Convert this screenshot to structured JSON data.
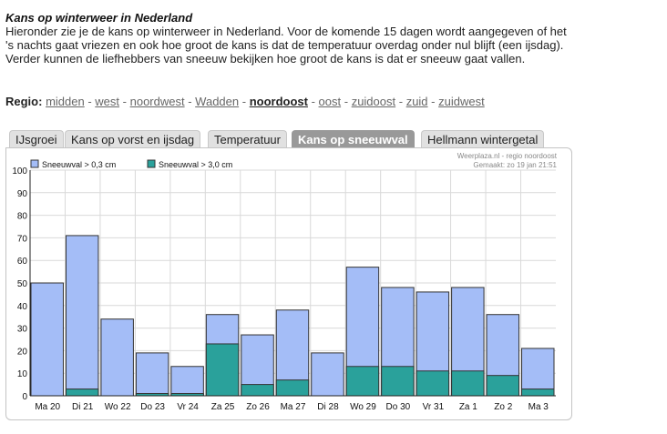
{
  "header": {
    "title": "Kans op winterweer in Nederland",
    "intro": "Hieronder zie je de kans op winterweer in Nederland. Voor de komende 15 dagen wordt aangegeven of het 's nachts gaat vriezen en ook hoe groot de kans is dat de temperatuur overdag onder nul blijft (een ijsdag). Verder kunnen de liefhebbers van sneeuw bekijken hoe groot de kans is dat er sneeuw gaat vallen."
  },
  "regio": {
    "label": "Regio:",
    "links": [
      "midden",
      "west",
      "noordwest",
      "Wadden",
      "noordoost",
      "oost",
      "zuidoost",
      "zuid",
      "zuidwest"
    ],
    "active": "noordoost"
  },
  "tabs": [
    "IJsgroei",
    "Kans op vorst en ijsdag",
    "Temperatuur",
    "Kans op sneeuwval",
    "Hellmann wintergetal"
  ],
  "active_tab": "Kans op sneeuwval",
  "credit": {
    "line1": "Weerplaza.nl - regio noordoost",
    "line2": "Gemaakt: zo 19 jan 21:51"
  },
  "colors": {
    "light": "#a4bdf7",
    "dark": "#2aa19b",
    "grid": "#d9d9d9",
    "active_tab": "#999999"
  },
  "chart_data": {
    "type": "bar",
    "categories": [
      "Ma 20",
      "Di 21",
      "Wo 22",
      "Do 23",
      "Vr 24",
      "Za 25",
      "Zo 26",
      "Ma 27",
      "Di 28",
      "Wo 29",
      "Do 30",
      "Vr 31",
      "Za 1",
      "Zo 2",
      "Ma 3"
    ],
    "series": [
      {
        "name": "Sneeuwval > 0,3 cm",
        "values": [
          50,
          71,
          34,
          19,
          13,
          36,
          27,
          38,
          19,
          57,
          48,
          46,
          48,
          36,
          21
        ]
      },
      {
        "name": "Sneeuwval > 3,0 cm",
        "values": [
          0,
          3,
          0,
          1,
          1,
          23,
          5,
          7,
          0,
          13,
          13,
          11,
          11,
          9,
          3
        ]
      }
    ],
    "yticks": [
      0,
      10,
      20,
      30,
      40,
      50,
      60,
      70,
      80,
      90,
      100
    ],
    "ylim": [
      0,
      100
    ],
    "grid": true,
    "legend": "top-left"
  }
}
